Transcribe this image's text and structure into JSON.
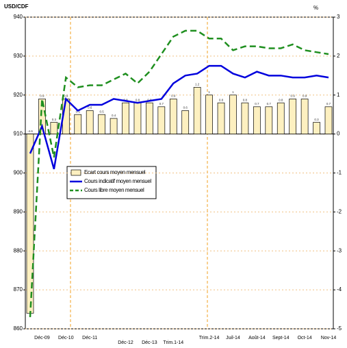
{
  "chart_data": {
    "type": "bar_line",
    "y_label": "USD/CDF",
    "y2_label": "%",
    "categories": [
      null,
      "Déc-09",
      null,
      "Déc-10",
      null,
      "Déc-11",
      null,
      null,
      "Déc-12",
      null,
      "Déc-13",
      null,
      "Trim.1-14",
      null,
      null,
      "Trim.2-14",
      null,
      "Juil-14",
      null,
      "Août-14",
      null,
      "Sept-14",
      null,
      "Oct-14",
      null,
      "Nov-14"
    ],
    "series": [
      {
        "name": "Ecart cours moyen mensuel",
        "type": "bar",
        "axis": "y2",
        "color": "#fdf0c0",
        "values": [
          -4.6,
          0.9,
          0.3,
          0.9,
          0.5,
          0.6,
          0.5,
          0.4,
          0.8,
          0.8,
          0.8,
          0.7,
          0.9,
          0.6,
          1.2,
          1.0,
          0.8,
          1.0,
          0.8,
          0.7,
          0.7,
          0.8,
          0.9,
          0.9,
          0.3,
          0.7
        ]
      },
      {
        "name": "Cours indicatif moyen mensuel",
        "type": "line",
        "color": "#0000dd",
        "values": [
          905,
          912,
          901,
          919,
          916,
          917.5,
          917.5,
          919,
          918.5,
          918,
          918.5,
          919,
          923,
          925,
          925.5,
          927.5,
          927.5,
          925.5,
          924.5,
          926,
          925,
          925,
          924.5,
          924.5,
          925,
          924.5
        ]
      },
      {
        "name": "Cours libre moyen mensuel",
        "type": "line",
        "dashed": true,
        "color": "#1f8f1f",
        "values": [
          863,
          919,
          904,
          924.5,
          922,
          922.5,
          922.5,
          924,
          925.5,
          923,
          926,
          930.5,
          935,
          936.5,
          936.5,
          934.5,
          934.5,
          931.5,
          932.5,
          932.5,
          932,
          932,
          933,
          931.5,
          931,
          930.5
        ]
      }
    ],
    "ylim": [
      860,
      940
    ],
    "yticks": [
      860,
      870,
      880,
      890,
      900,
      910,
      920,
      930,
      940
    ],
    "y2lim": [
      -5,
      3
    ],
    "y2ticks": [
      -5,
      -4,
      -3,
      -2,
      -1,
      0,
      1,
      2,
      3
    ],
    "grid": true
  }
}
